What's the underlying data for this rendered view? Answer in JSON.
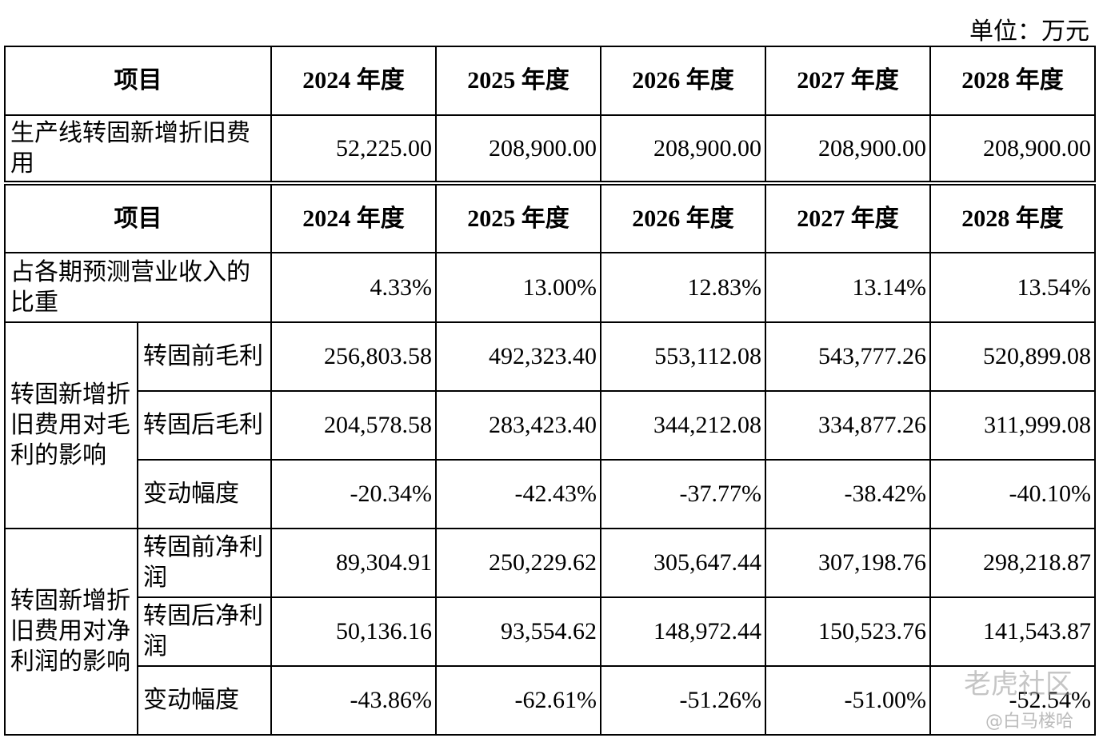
{
  "unit": "单位：万元",
  "table1": {
    "header": [
      "项目",
      "2024 年度",
      "2025 年度",
      "2026 年度",
      "2027 年度",
      "2028 年度"
    ],
    "rows": [
      {
        "label": "生产线转固新增折旧费用",
        "values": [
          "52,225.00",
          "208,900.00",
          "208,900.00",
          "208,900.00",
          "208,900.00"
        ]
      }
    ]
  },
  "table2": {
    "header": [
      "项目",
      "2024 年度",
      "2025 年度",
      "2026 年度",
      "2027 年度",
      "2028 年度"
    ],
    "rows": [
      {
        "label": "占各期预测营业收入的比重",
        "values": [
          "4.33%",
          "13.00%",
          "12.83%",
          "13.14%",
          "13.54%"
        ]
      }
    ],
    "groups": [
      {
        "label": "转固新增折旧费用对毛利的影响",
        "rows": [
          {
            "label": "转固前毛利",
            "values": [
              "256,803.58",
              "492,323.40",
              "553,112.08",
              "543,777.26",
              "520,899.08"
            ]
          },
          {
            "label": "转固后毛利",
            "values": [
              "204,578.58",
              "283,423.40",
              "344,212.08",
              "334,877.26",
              "311,999.08"
            ]
          },
          {
            "label": "变动幅度",
            "values": [
              "-20.34%",
              "-42.43%",
              "-37.77%",
              "-38.42%",
              "-40.10%"
            ]
          }
        ]
      },
      {
        "label": "转固新增折旧费用对净利润的影响",
        "rows": [
          {
            "label": "转固前净利润",
            "values": [
              "89,304.91",
              "250,229.62",
              "305,647.44",
              "307,198.76",
              "298,218.87"
            ]
          },
          {
            "label": "转固后净利润",
            "values": [
              "50,136.16",
              "93,554.62",
              "148,972.44",
              "150,523.76",
              "141,543.87"
            ]
          },
          {
            "label": "变动幅度",
            "values": [
              "-43.86%",
              "-62.61%",
              "-51.26%",
              "-51.00%",
              "-52.54%"
            ]
          }
        ]
      }
    ]
  },
  "watermark": {
    "brand": "老虎社区",
    "author": "@白马楼哈"
  }
}
